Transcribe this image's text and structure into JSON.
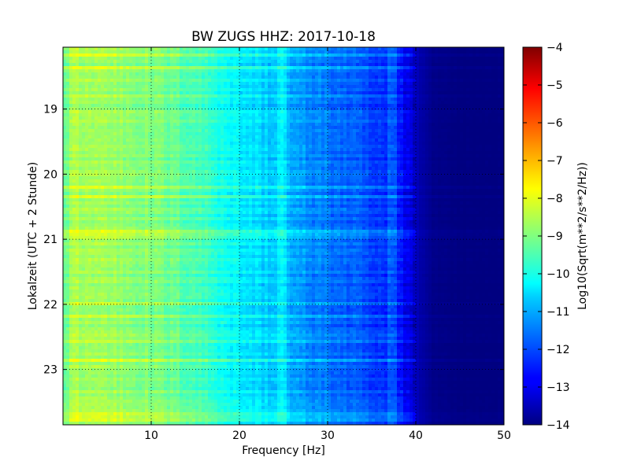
{
  "chart_data": {
    "type": "heatmap",
    "title": "BW ZUGS HHZ: 2017-10-18",
    "xlabel": "Frequency [Hz]",
    "ylabel": "Lokalzeit (UTC + 2 Stunde)",
    "xlim": [
      0,
      50
    ],
    "ylim": [
      18.05,
      23.85
    ],
    "y_inverted": true,
    "grid": true,
    "x_ticks": [
      10,
      20,
      30,
      40,
      50
    ],
    "x_tick_labels": [
      "10",
      "20",
      "30",
      "40",
      "50"
    ],
    "y_ticks": [
      19,
      20,
      21,
      22,
      23
    ],
    "y_tick_labels": [
      "19",
      "20",
      "21",
      "22",
      "23"
    ],
    "colormap": "jet",
    "colorbar": {
      "label": "Log10(Sqrt(m**2/s**2/Hz))",
      "range": [
        -14,
        -4
      ],
      "ticks": [
        -4,
        -5,
        -6,
        -7,
        -8,
        -9,
        -10,
        -11,
        -12,
        -13,
        -14
      ],
      "tick_labels": [
        "−4",
        "−5",
        "−6",
        "−7",
        "−8",
        "−9",
        "−10",
        "−11",
        "−12",
        "−13",
        "−14"
      ]
    },
    "spectrum_profile": {
      "frequency_hz": [
        0,
        1,
        5,
        10,
        15,
        18,
        20,
        24,
        25,
        27,
        30,
        33,
        35,
        36.5,
        37.5,
        38.5,
        39.5,
        40.5,
        42,
        45,
        50
      ],
      "log_amplitude": [
        -9.5,
        -8.6,
        -8.7,
        -9.0,
        -9.5,
        -10.0,
        -10.4,
        -10.8,
        -11.0,
        -11.3,
        -11.6,
        -11.9,
        -12.2,
        -12.4,
        -12.5,
        -12.7,
        -13.1,
        -13.6,
        -13.9,
        -14.0,
        -14.0
      ]
    },
    "narrow_lines_hz": [
      24.8,
      37.3
    ]
  }
}
